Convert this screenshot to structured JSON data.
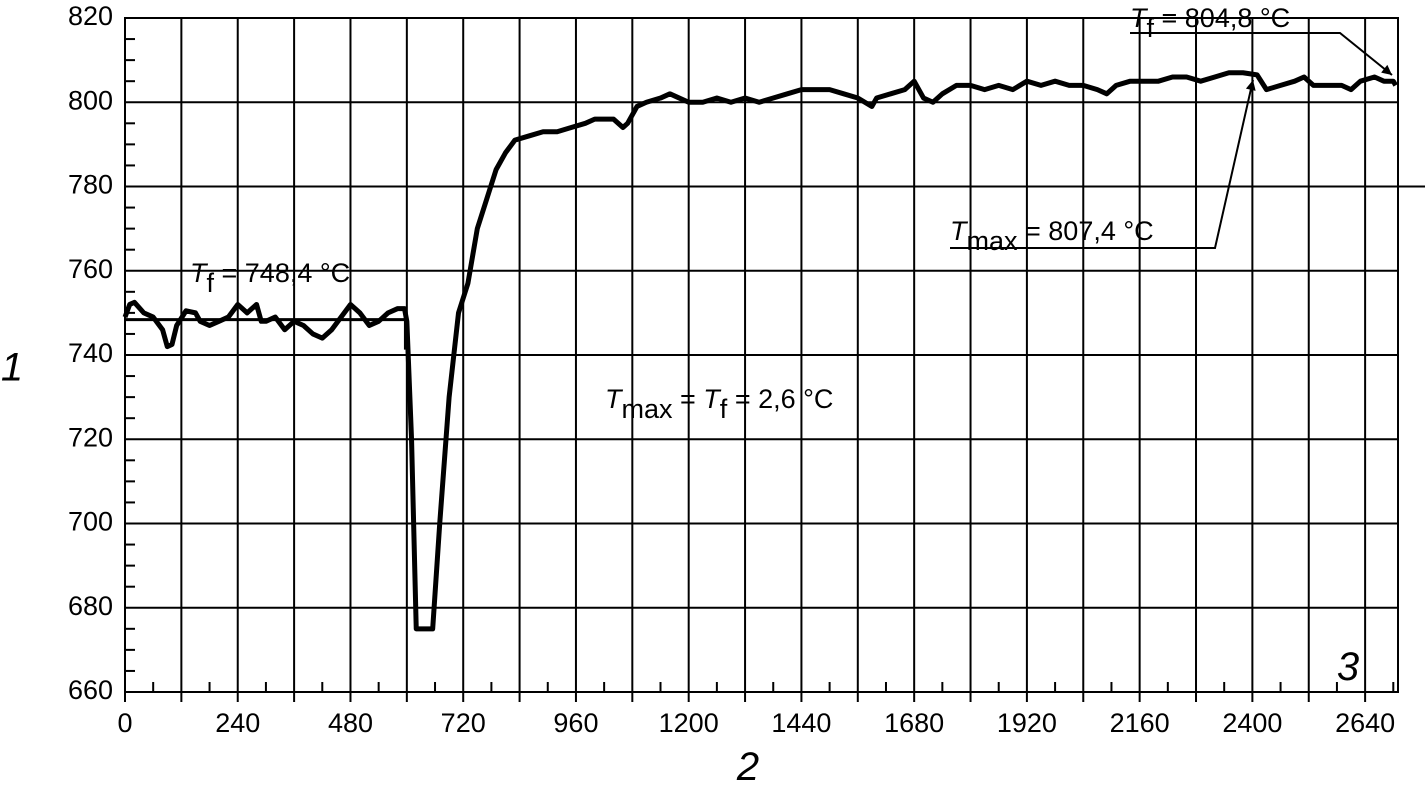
{
  "chart_data": {
    "type": "line",
    "y_label": "1",
    "x_label": "2",
    "panel_label": "3",
    "xlim": [
      0,
      2710
    ],
    "ylim": [
      660,
      820
    ],
    "xticks": [
      0,
      240,
      480,
      720,
      960,
      1200,
      1440,
      1680,
      1920,
      2160,
      2400,
      2640
    ],
    "xgrid": [
      120,
      360,
      600,
      840,
      1080,
      1320,
      1560,
      1800,
      2040,
      2280,
      2520
    ],
    "xminor": [
      60,
      180,
      300,
      420,
      540,
      660,
      780,
      900,
      1020,
      1140,
      1260,
      1380,
      1500,
      1620,
      1740,
      1860,
      1980,
      2100,
      2220,
      2340,
      2460,
      2580,
      2700
    ],
    "yticks": [
      660,
      680,
      700,
      720,
      740,
      760,
      780,
      800,
      820
    ],
    "yminor": [
      665,
      670,
      675,
      685,
      690,
      695,
      705,
      710,
      715,
      725,
      730,
      735,
      745,
      750,
      755,
      765,
      770,
      775,
      785,
      790,
      795,
      805,
      810,
      815
    ],
    "grid": true,
    "hline": {
      "y": 748.4,
      "x": [
        0,
        597
      ]
    },
    "series": [
      {
        "color": "#000000",
        "x": [
          0,
          10,
          20,
          40,
          60,
          80,
          90,
          100,
          110,
          130,
          150,
          160,
          180,
          200,
          220,
          240,
          260,
          280,
          290,
          300,
          320,
          340,
          360,
          380,
          400,
          420,
          440,
          460,
          480,
          500,
          520,
          540,
          560,
          580,
          595,
          600,
          610,
          620,
          655,
          670,
          690,
          710,
          730,
          750,
          770,
          790,
          810,
          830,
          860,
          890,
          920,
          950,
          980,
          1000,
          1020,
          1040,
          1060,
          1070,
          1090,
          1110,
          1140,
          1160,
          1180,
          1200,
          1230,
          1260,
          1290,
          1320,
          1350,
          1380,
          1410,
          1440,
          1470,
          1500,
          1530,
          1560,
          1590,
          1600,
          1630,
          1660,
          1680,
          1700,
          1720,
          1740,
          1770,
          1800,
          1830,
          1860,
          1890,
          1920,
          1950,
          1980,
          2010,
          2040,
          2070,
          2090,
          2110,
          2140,
          2170,
          2200,
          2230,
          2260,
          2290,
          2320,
          2350,
          2380,
          2410,
          2430,
          2460,
          2490,
          2510,
          2530,
          2560,
          2590,
          2610,
          2630,
          2660,
          2680,
          2700,
          2705
        ],
        "values": [
          749,
          752,
          752.5,
          750,
          749,
          746,
          742,
          742.5,
          747,
          750.5,
          750,
          748,
          747,
          748,
          749,
          752,
          750,
          752,
          748,
          748,
          749,
          746,
          748,
          747,
          745,
          744,
          746,
          749,
          752,
          750,
          747,
          748,
          750,
          751,
          751,
          748,
          720,
          675,
          675,
          700,
          730,
          750,
          757,
          770,
          777,
          784,
          788,
          791,
          792,
          793,
          793,
          794,
          795,
          796,
          796,
          796,
          794,
          795,
          799,
          800,
          801,
          802,
          801,
          800,
          800,
          801,
          800,
          801,
          800,
          801,
          802,
          803,
          803,
          803,
          802,
          801,
          799,
          801,
          802,
          803,
          805,
          801,
          800,
          802,
          804,
          804,
          803,
          804,
          803,
          805,
          804,
          805,
          804,
          804,
          803,
          802,
          804,
          805,
          805,
          805,
          806,
          806,
          805,
          806,
          807,
          807,
          806.5,
          803,
          804,
          805,
          806,
          804,
          804,
          804,
          803,
          805,
          806,
          805,
          805,
          804
        ]
      }
    ],
    "annotations": [
      {
        "segments": [
          {
            "text": "T",
            "style": "italic"
          },
          {
            "text": "f",
            "style": "sub"
          },
          {
            "text": " = 748,4 °C",
            "style": "normal"
          }
        ]
      },
      {
        "segments": [
          {
            "text": "T",
            "style": "italic"
          },
          {
            "text": "f",
            "style": "sub"
          },
          {
            "text": " = 804,8 °C",
            "style": "normal"
          }
        ]
      },
      {
        "segments": [
          {
            "text": "T",
            "style": "italic"
          },
          {
            "text": "max",
            "style": "sub"
          },
          {
            "text": " = 807,4 °C",
            "style": "normal"
          }
        ]
      },
      {
        "segments": [
          {
            "text": "T",
            "style": "italic"
          },
          {
            "text": "max",
            "style": "sub"
          },
          {
            "text": " = ",
            "style": "normal"
          },
          {
            "text": "T",
            "style": "italic"
          },
          {
            "text": "f",
            "style": "sub"
          },
          {
            "text": " = 2,6 °C",
            "style": "normal"
          }
        ]
      }
    ]
  }
}
